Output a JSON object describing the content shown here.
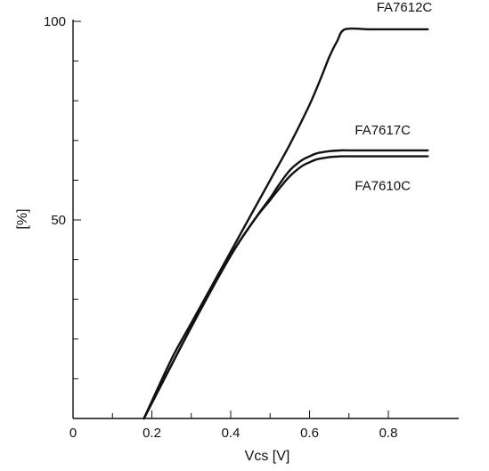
{
  "chart_data": {
    "type": "line",
    "title": "",
    "xlabel": "Vcs [V]",
    "ylabel": "[%]",
    "xlim": [
      0,
      0.9
    ],
    "ylim": [
      0,
      100
    ],
    "x_tick_labels": [
      {
        "value": 0,
        "label": "0"
      },
      {
        "value": 0.2,
        "label": "0.2"
      },
      {
        "value": 0.4,
        "label": "0.4"
      },
      {
        "value": 0.6,
        "label": "0.6"
      },
      {
        "value": 0.8,
        "label": "0.8"
      }
    ],
    "y_tick_labels": [
      {
        "value": 50,
        "label": "50"
      },
      {
        "value": 100,
        "label": "100"
      }
    ],
    "y_minor_ticks": [
      10,
      20,
      30,
      40,
      60,
      70,
      80,
      90
    ],
    "x_minor_ticks": [
      0.1,
      0.3,
      0.5,
      0.7
    ],
    "grid": false,
    "series": [
      {
        "name": "FA7612C",
        "x": [
          0.18,
          0.25,
          0.3,
          0.35,
          0.4,
          0.45,
          0.5,
          0.55,
          0.6,
          0.63,
          0.65,
          0.67,
          0.69,
          0.75,
          0.8,
          0.9
        ],
        "y": [
          0,
          15,
          24,
          33,
          42,
          51,
          60,
          69,
          79,
          86,
          91,
          95,
          98,
          98,
          98,
          98
        ]
      },
      {
        "name": "FA7617C",
        "x": [
          0.18,
          0.3,
          0.4,
          0.46,
          0.5,
          0.52,
          0.55,
          0.58,
          0.6,
          0.62,
          0.65,
          0.68,
          0.7,
          0.8,
          0.9
        ],
        "y": [
          0,
          23,
          41,
          50,
          55.5,
          58.5,
          62.5,
          65,
          66,
          66.8,
          67.3,
          67.5,
          67.5,
          67.5,
          67.5
        ]
      },
      {
        "name": "FA7610C",
        "x": [
          0.18,
          0.3,
          0.4,
          0.46,
          0.5,
          0.52,
          0.55,
          0.58,
          0.6,
          0.62,
          0.65,
          0.68,
          0.7,
          0.8,
          0.9
        ],
        "y": [
          0,
          23,
          41,
          50,
          55,
          57.5,
          61,
          63.5,
          64.5,
          65.3,
          65.8,
          66,
          66,
          66,
          66
        ]
      }
    ]
  }
}
